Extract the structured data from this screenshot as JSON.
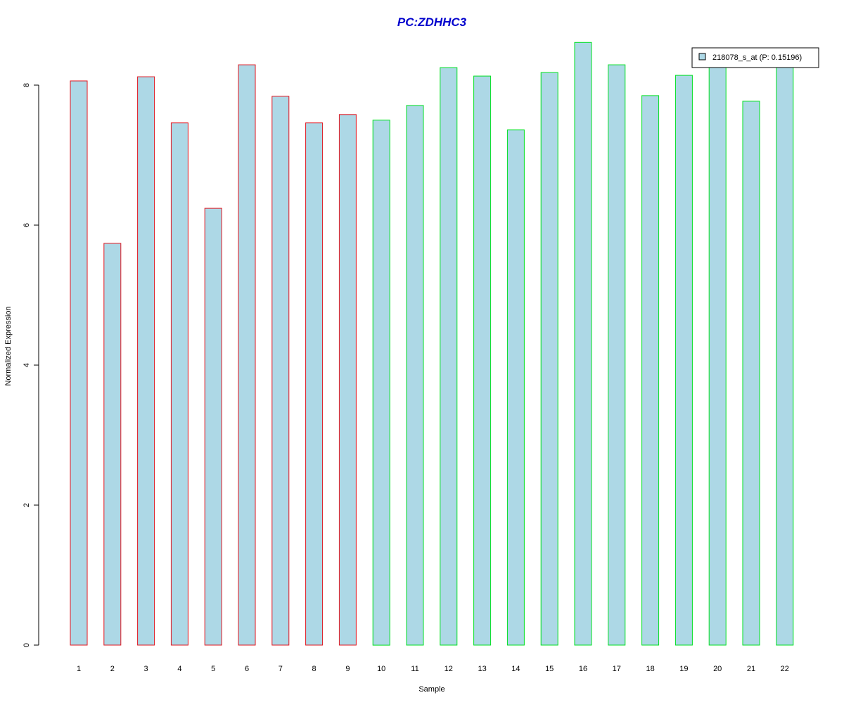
{
  "chart_data": {
    "type": "bar",
    "title": "PC:ZDHHC3",
    "xlabel": "Sample",
    "ylabel": "Normalized Expression",
    "categories": [
      "1",
      "2",
      "3",
      "4",
      "5",
      "6",
      "7",
      "8",
      "9",
      "10",
      "11",
      "12",
      "13",
      "14",
      "15",
      "16",
      "17",
      "18",
      "19",
      "20",
      "21",
      "22"
    ],
    "series": [
      {
        "name": "218078_s_at (P: 0.15196)",
        "values": [
          8.06,
          5.74,
          8.12,
          7.46,
          6.24,
          8.29,
          7.84,
          7.46,
          7.58,
          7.5,
          7.71,
          8.25,
          8.13,
          7.36,
          8.18,
          8.61,
          8.29,
          7.85,
          8.14,
          8.29,
          7.77,
          8.29
        ]
      }
    ],
    "groups": [
      {
        "samples": [
          1,
          9
        ],
        "border_color": "#e0141e"
      },
      {
        "samples": [
          10,
          22
        ],
        "border_color": "#00e020"
      }
    ],
    "ylim": [
      0,
      8.75
    ],
    "yticks": [
      0,
      2,
      4,
      6,
      8
    ],
    "fill_color": "#add8e6",
    "title_color": "#0000cd",
    "legend_position": "top-right",
    "grid": false
  }
}
